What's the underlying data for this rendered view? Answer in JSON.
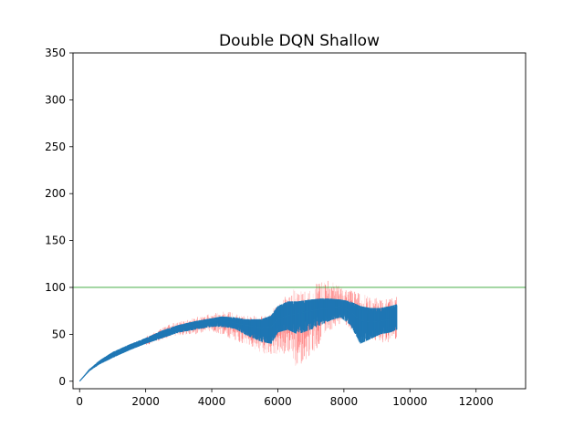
{
  "chart_data": {
    "type": "line",
    "title": "Double DQN Shallow",
    "xlabel": "",
    "ylabel": "",
    "xlim": [
      -200,
      13500
    ],
    "ylim": [
      -8,
      350
    ],
    "xticks": [
      0,
      2000,
      4000,
      6000,
      8000,
      10000,
      12000
    ],
    "yticks": [
      0,
      50,
      100,
      150,
      200,
      250,
      300,
      350
    ],
    "grid": false,
    "legend": "none",
    "reference_line": {
      "y": 100,
      "color": "#2ca02c"
    },
    "series": [
      {
        "role": "mean",
        "color": "#1f77b4",
        "x": [
          0,
          300,
          600,
          1000,
          1500,
          2000,
          2500,
          3000,
          3500,
          4000,
          4300,
          4700,
          5000,
          5500,
          5800,
          6000,
          6300,
          6600,
          7000,
          7300,
          7600,
          7900,
          8200,
          8500,
          8800,
          9100,
          9400,
          9600
        ],
        "y": [
          0,
          12,
          20,
          28,
          36,
          43,
          50,
          56,
          60,
          64,
          65,
          62,
          60,
          57,
          58,
          66,
          70,
          72,
          75,
          77,
          78,
          80,
          74,
          65,
          63,
          64,
          66,
          68
        ],
        "band_low": [
          0,
          11,
          18,
          25,
          33,
          40,
          46,
          52,
          55,
          58,
          58,
          56,
          50,
          42,
          40,
          52,
          55,
          50,
          55,
          60,
          65,
          68,
          60,
          40,
          45,
          50,
          52,
          55
        ],
        "band_high": [
          0,
          13,
          22,
          31,
          39,
          46,
          54,
          60,
          64,
          67,
          69,
          68,
          66,
          66,
          70,
          80,
          85,
          85,
          87,
          88,
          88,
          87,
          85,
          80,
          78,
          78,
          80,
          82
        ]
      },
      {
        "role": "spread",
        "color": "#ff0000",
        "x": [
          2000,
          2800,
          3500,
          4000,
          4500,
          5000,
          5500,
          6000,
          6300,
          6600,
          6900,
          7200,
          7600,
          8000,
          8400,
          8800,
          9200,
          9600
        ],
        "band_low": [
          38,
          48,
          50,
          54,
          45,
          40,
          30,
          28,
          30,
          12,
          25,
          35,
          55,
          60,
          50,
          45,
          40,
          45
        ],
        "band_high": [
          48,
          62,
          68,
          72,
          75,
          70,
          70,
          80,
          95,
          100,
          98,
          105,
          108,
          100,
          95,
          90,
          88,
          90
        ]
      }
    ]
  }
}
